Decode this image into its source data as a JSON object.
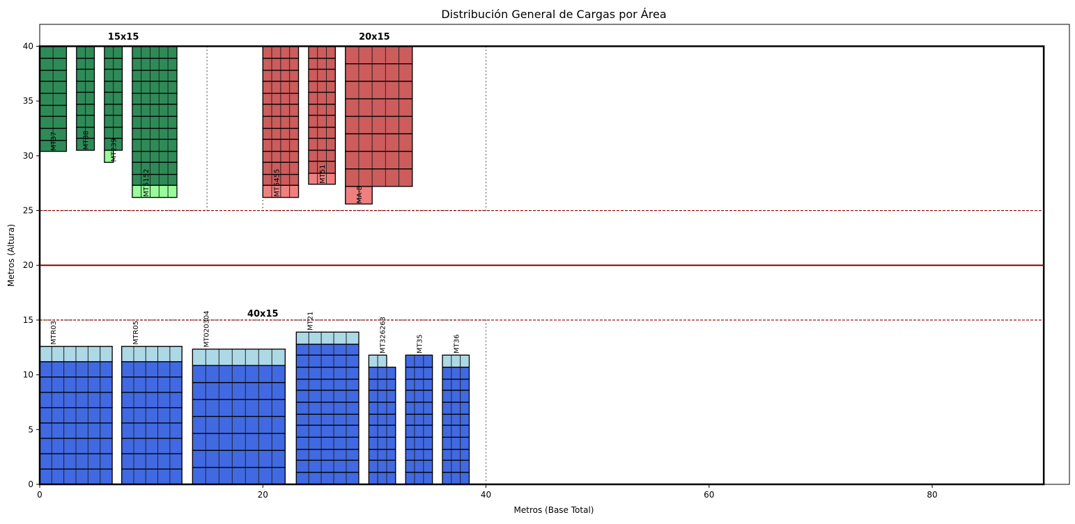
{
  "chart_data": {
    "type": "bar",
    "title": "Distribución General de Cargas por Área",
    "xlabel": "Metros (Base Total)",
    "ylabel": "Metros (Altura)",
    "xlim": [
      0,
      92.3
    ],
    "ylim": [
      0,
      42
    ],
    "xticks": [
      "0",
      "20",
      "40",
      "60",
      "80"
    ],
    "yticks": [
      "0",
      "5",
      "10",
      "15",
      "20",
      "25",
      "30",
      "35",
      "40"
    ],
    "grid": false,
    "colors": {
      "dark_green": "#2e8b57",
      "light_green": "#98fb98",
      "dark_red": "#cd5c5c",
      "light_red": "#f08080",
      "blue": "#4169e1",
      "light_blue": "#add8e6",
      "boundary": "#8b0000"
    },
    "area": {
      "x": [
        0,
        90
      ],
      "y": [
        0,
        40
      ]
    },
    "divider_line_y": 20,
    "dashed_lines_y": [
      25,
      15
    ],
    "zones": [
      {
        "label": "15x15",
        "x0": 0,
        "x1": 15,
        "y0": 25,
        "y1": 40,
        "label_x": 7.5,
        "label_y": 40.6
      },
      {
        "label": "20x15",
        "x0": 20,
        "x1": 40,
        "y0": 25,
        "y1": 40,
        "label_x": 30,
        "label_y": 40.6
      },
      {
        "label": "40x15",
        "x0": 0,
        "x1": 40,
        "y0": 0,
        "y1": 15,
        "label_x": 20,
        "label_y": 15.3
      }
    ],
    "stacks": [
      {
        "label": "MT37",
        "side": "top",
        "x": 0,
        "width": 2.4,
        "cols": 2,
        "rows": [
          {
            "h": 1.1,
            "color": "dark_green"
          },
          {
            "h": 1.1,
            "color": "dark_green"
          },
          {
            "h": 1.0,
            "color": "dark_green"
          },
          {
            "h": 1.1,
            "color": "dark_green"
          },
          {
            "h": 1.1,
            "color": "dark_green"
          },
          {
            "h": 1.0,
            "color": "dark_green"
          },
          {
            "h": 1.1,
            "color": "dark_green"
          },
          {
            "h": 1.1,
            "color": "dark_green"
          },
          {
            "h": 1.0,
            "color": "dark_green"
          }
        ]
      },
      {
        "label": "MT88",
        "side": "top",
        "x": 3.3,
        "width": 1.6,
        "cols": 2,
        "rows": [
          {
            "h": 1.1,
            "color": "dark_green"
          },
          {
            "h": 1.0,
            "color": "dark_green"
          },
          {
            "h": 1.1,
            "color": "dark_green"
          },
          {
            "h": 1.0,
            "color": "dark_green"
          },
          {
            "h": 1.1,
            "color": "dark_green"
          },
          {
            "h": 1.0,
            "color": "dark_green"
          },
          {
            "h": 1.1,
            "color": "dark_green"
          },
          {
            "h": 1.0,
            "color": "dark_green"
          },
          {
            "h": 1.1,
            "color": "dark_green"
          }
        ]
      },
      {
        "label": "MT239",
        "side": "top",
        "x": 5.8,
        "width": 1.6,
        "cols": 2,
        "rows": [
          {
            "h": 1.1,
            "color": "dark_green"
          },
          {
            "h": 1.0,
            "color": "dark_green"
          },
          {
            "h": 1.1,
            "color": "dark_green"
          },
          {
            "h": 1.0,
            "color": "dark_green"
          },
          {
            "h": 1.1,
            "color": "dark_green"
          },
          {
            "h": 1.0,
            "color": "dark_green"
          },
          {
            "h": 1.1,
            "color": "dark_green"
          },
          {
            "h": 1.0,
            "color": "dark_green"
          },
          {
            "h": 1.1,
            "color": "dark_green"
          },
          {
            "h": 1.1,
            "color": "light_green",
            "width": 0.8
          }
        ]
      },
      {
        "label": "MT5152",
        "side": "top",
        "x": 8.3,
        "width": 4.0,
        "cols": 5,
        "rows": [
          {
            "h": 1.1,
            "color": "dark_green"
          },
          {
            "h": 1.1,
            "color": "dark_green"
          },
          {
            "h": 1.0,
            "color": "dark_green"
          },
          {
            "h": 1.1,
            "color": "dark_green"
          },
          {
            "h": 1.0,
            "color": "dark_green"
          },
          {
            "h": 1.1,
            "color": "dark_green"
          },
          {
            "h": 1.1,
            "color": "dark_green"
          },
          {
            "h": 1.0,
            "color": "dark_green"
          },
          {
            "h": 1.1,
            "color": "dark_green"
          },
          {
            "h": 1.0,
            "color": "dark_green"
          },
          {
            "h": 1.1,
            "color": "dark_green"
          },
          {
            "h": 1.0,
            "color": "dark_green"
          },
          {
            "h": 1.1,
            "color": "light_green"
          }
        ]
      },
      {
        "label": "MT5455",
        "side": "top",
        "x": 20,
        "width": 3.2,
        "cols": 4,
        "rows": [
          {
            "h": 1.1,
            "color": "dark_red"
          },
          {
            "h": 1.1,
            "color": "dark_red"
          },
          {
            "h": 1.0,
            "color": "dark_red"
          },
          {
            "h": 1.1,
            "color": "dark_red"
          },
          {
            "h": 1.0,
            "color": "dark_red"
          },
          {
            "h": 1.1,
            "color": "dark_red"
          },
          {
            "h": 1.1,
            "color": "dark_red"
          },
          {
            "h": 1.0,
            "color": "dark_red"
          },
          {
            "h": 1.1,
            "color": "dark_red"
          },
          {
            "h": 1.0,
            "color": "dark_red"
          },
          {
            "h": 1.1,
            "color": "dark_red"
          },
          {
            "h": 1.0,
            "color": "dark_red"
          },
          {
            "h": 1.1,
            "color": "light_red"
          }
        ]
      },
      {
        "label": "MT51",
        "side": "top",
        "x": 24.1,
        "width": 2.4,
        "cols": 3,
        "rows": [
          {
            "h": 1.1,
            "color": "dark_red"
          },
          {
            "h": 1.0,
            "color": "dark_red"
          },
          {
            "h": 1.1,
            "color": "dark_red"
          },
          {
            "h": 1.0,
            "color": "dark_red"
          },
          {
            "h": 1.1,
            "color": "dark_red"
          },
          {
            "h": 1.0,
            "color": "dark_red"
          },
          {
            "h": 1.1,
            "color": "dark_red"
          },
          {
            "h": 1.0,
            "color": "dark_red"
          },
          {
            "h": 1.1,
            "color": "dark_red"
          },
          {
            "h": 1.0,
            "color": "dark_red"
          },
          {
            "h": 1.1,
            "color": "dark_red"
          },
          {
            "h": 1.0,
            "color": "light_red"
          }
        ]
      },
      {
        "label": "MA-8",
        "side": "top",
        "x": 27.4,
        "width": 6.0,
        "cols": 5,
        "rows": [
          {
            "h": 1.6,
            "color": "dark_red"
          },
          {
            "h": 1.6,
            "color": "dark_red"
          },
          {
            "h": 1.6,
            "color": "dark_red"
          },
          {
            "h": 1.6,
            "color": "dark_red"
          },
          {
            "h": 1.6,
            "color": "dark_red"
          },
          {
            "h": 1.6,
            "color": "dark_red"
          },
          {
            "h": 1.6,
            "color": "dark_red"
          },
          {
            "h": 1.6,
            "color": "dark_red"
          },
          {
            "h": 1.6,
            "color": "light_red",
            "width": 2.4
          }
        ]
      },
      {
        "label": "MTR03",
        "side": "bottom",
        "x": 0,
        "width": 6.5,
        "cols": 6,
        "rows": [
          {
            "h": 1.4,
            "color": "blue"
          },
          {
            "h": 1.4,
            "color": "blue"
          },
          {
            "h": 1.4,
            "color": "blue"
          },
          {
            "h": 1.4,
            "color": "blue"
          },
          {
            "h": 1.4,
            "color": "blue"
          },
          {
            "h": 1.4,
            "color": "blue"
          },
          {
            "h": 1.4,
            "color": "blue"
          },
          {
            "h": 1.4,
            "color": "blue"
          },
          {
            "h": 1.4,
            "color": "light_blue"
          }
        ]
      },
      {
        "label": "MTR05",
        "side": "bottom",
        "x": 7.35,
        "width": 5.4,
        "cols": 5,
        "rows": [
          {
            "h": 1.4,
            "color": "blue"
          },
          {
            "h": 1.4,
            "color": "blue"
          },
          {
            "h": 1.4,
            "color": "blue"
          },
          {
            "h": 1.4,
            "color": "blue"
          },
          {
            "h": 1.4,
            "color": "blue"
          },
          {
            "h": 1.4,
            "color": "blue"
          },
          {
            "h": 1.4,
            "color": "blue"
          },
          {
            "h": 1.4,
            "color": "blue"
          },
          {
            "h": 1.4,
            "color": "light_blue"
          }
        ]
      },
      {
        "label": "MT020304",
        "side": "bottom",
        "x": 13.7,
        "width": 8.3,
        "cols": 7,
        "rows": [
          {
            "h": 1.55,
            "color": "blue"
          },
          {
            "h": 1.55,
            "color": "blue"
          },
          {
            "h": 1.55,
            "color": "blue"
          },
          {
            "h": 1.55,
            "color": "blue"
          },
          {
            "h": 1.55,
            "color": "blue"
          },
          {
            "h": 1.55,
            "color": "blue"
          },
          {
            "h": 1.55,
            "color": "blue"
          },
          {
            "h": 1.5,
            "color": "light_blue"
          }
        ]
      },
      {
        "label": "MT21",
        "side": "bottom",
        "x": 23.0,
        "width": 5.6,
        "cols": 5,
        "rows": [
          {
            "h": 1.1,
            "color": "blue"
          },
          {
            "h": 1.1,
            "color": "blue"
          },
          {
            "h": 1.0,
            "color": "blue"
          },
          {
            "h": 1.1,
            "color": "blue"
          },
          {
            "h": 1.1,
            "color": "blue"
          },
          {
            "h": 1.0,
            "color": "blue"
          },
          {
            "h": 1.1,
            "color": "blue"
          },
          {
            "h": 1.1,
            "color": "blue"
          },
          {
            "h": 1.0,
            "color": "blue"
          },
          {
            "h": 1.1,
            "color": "blue"
          },
          {
            "h": 1.1,
            "color": "blue"
          },
          {
            "h": 1.0,
            "color": "blue"
          },
          {
            "h": 1.1,
            "color": "light_blue"
          }
        ]
      },
      {
        "label": "MT326263",
        "side": "bottom",
        "x": 29.5,
        "width": 2.4,
        "cols": 3,
        "rows": [
          {
            "h": 1.1,
            "color": "blue"
          },
          {
            "h": 1.1,
            "color": "blue"
          },
          {
            "h": 1.0,
            "color": "blue"
          },
          {
            "h": 1.1,
            "color": "blue"
          },
          {
            "h": 1.1,
            "color": "blue"
          },
          {
            "h": 1.0,
            "color": "blue"
          },
          {
            "h": 1.1,
            "color": "blue"
          },
          {
            "h": 1.1,
            "color": "blue"
          },
          {
            "h": 1.0,
            "color": "blue"
          },
          {
            "h": 1.1,
            "color": "blue"
          },
          {
            "h": 1.1,
            "color": "light_blue",
            "width": 1.6
          }
        ]
      },
      {
        "label": "MT35",
        "side": "bottom",
        "x": 32.8,
        "width": 2.4,
        "cols": 3,
        "rows": [
          {
            "h": 1.1,
            "color": "blue"
          },
          {
            "h": 1.1,
            "color": "blue"
          },
          {
            "h": 1.0,
            "color": "blue"
          },
          {
            "h": 1.1,
            "color": "blue"
          },
          {
            "h": 1.1,
            "color": "blue"
          },
          {
            "h": 1.0,
            "color": "blue"
          },
          {
            "h": 1.1,
            "color": "blue"
          },
          {
            "h": 1.1,
            "color": "blue"
          },
          {
            "h": 1.0,
            "color": "blue"
          },
          {
            "h": 1.1,
            "color": "blue"
          },
          {
            "h": 1.1,
            "color": "blue"
          }
        ]
      },
      {
        "label": "MT36",
        "side": "bottom",
        "x": 36.1,
        "width": 2.4,
        "cols": 3,
        "rows": [
          {
            "h": 1.1,
            "color": "blue"
          },
          {
            "h": 1.1,
            "color": "blue"
          },
          {
            "h": 1.0,
            "color": "blue"
          },
          {
            "h": 1.1,
            "color": "blue"
          },
          {
            "h": 1.1,
            "color": "blue"
          },
          {
            "h": 1.0,
            "color": "blue"
          },
          {
            "h": 1.1,
            "color": "blue"
          },
          {
            "h": 1.1,
            "color": "blue"
          },
          {
            "h": 1.0,
            "color": "blue"
          },
          {
            "h": 1.1,
            "color": "blue"
          },
          {
            "h": 1.1,
            "color": "light_blue"
          }
        ]
      }
    ]
  }
}
